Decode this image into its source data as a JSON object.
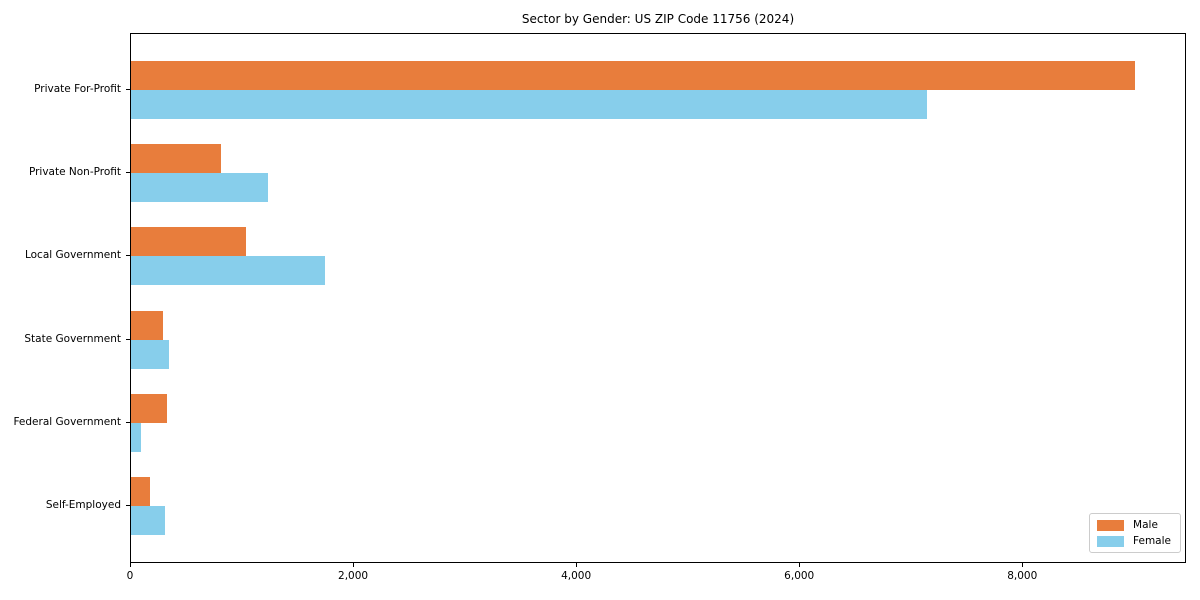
{
  "chart_data": {
    "type": "bar",
    "orientation": "horizontal",
    "title": "Sector by Gender: US ZIP Code 11756 (2024)",
    "categories": [
      "Private For-Profit",
      "Private Non-Profit",
      "Local Government",
      "State Government",
      "Federal Government",
      "Self-Employed"
    ],
    "series": [
      {
        "name": "Male",
        "color": "#e87d3c",
        "values": [
          9000,
          805,
          1030,
          285,
          320,
          170
        ]
      },
      {
        "name": "Female",
        "color": "#87ceeb",
        "values": [
          7140,
          1225,
          1735,
          340,
          90,
          305
        ]
      }
    ],
    "xlabel": "",
    "ylabel": "",
    "xlim": [
      0,
      9450
    ],
    "x_ticks": [
      {
        "value": 0,
        "label": "0"
      },
      {
        "value": 2000,
        "label": "2,000"
      },
      {
        "value": 4000,
        "label": "4,000"
      },
      {
        "value": 6000,
        "label": "6,000"
      },
      {
        "value": 8000,
        "label": "8,000"
      }
    ],
    "grid": false,
    "legend_position": "lower right",
    "colors": {
      "male": "#e87d3c",
      "female": "#87ceeb",
      "axis": "#000000",
      "legend_border": "#cccccc"
    }
  }
}
